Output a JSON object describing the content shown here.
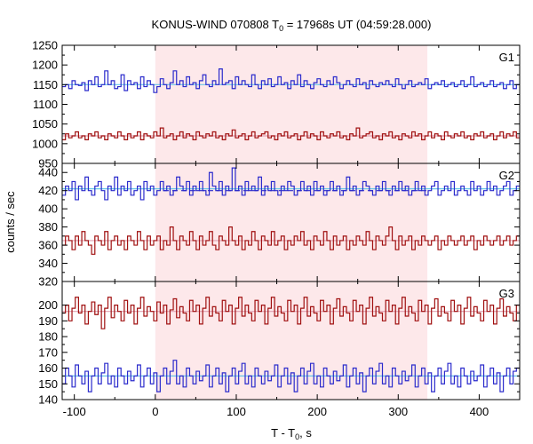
{
  "chart_data": {
    "type": "line",
    "title_prefix": "KONUS-WIND 070808 T",
    "title_sub": "0",
    "title_suffix": " = 17968s UT (04:59:28.000)",
    "xlabel_prefix": "T - T",
    "xlabel_sub": "0",
    "xlabel_suffix": ", s",
    "ylabel": "counts / sec",
    "xlim": [
      -115,
      450
    ],
    "xticks": [
      -100,
      0,
      100,
      200,
      300,
      400
    ],
    "xtick_labels": [
      "-100",
      "0",
      "100",
      "200",
      "300",
      "400"
    ],
    "shaded_interval": [
      0,
      336
    ],
    "colors": {
      "blue": "#2b2bcc",
      "red": "#a01010",
      "fit_blue": "#66c6e8",
      "fit_red": "#e0a0b0",
      "shade": "#fde8ea"
    },
    "panels": [
      {
        "label": "G1",
        "ylim": [
          950,
          1250
        ],
        "yticks": [
          950,
          1000,
          1050,
          1100,
          1150,
          1200,
          1250
        ],
        "ytick_labels": [
          "950",
          "1000",
          "1050",
          "1100",
          "1150",
          "1200",
          "1250"
        ],
        "series": [
          {
            "color": "blue",
            "fit": 1150,
            "fit_color": "fit_blue",
            "values": [
              1145,
              1150,
              1140,
              1160,
              1150,
              1148,
              1155,
              1135,
              1160,
              1150,
              1170,
              1145,
              1150,
              1185,
              1150,
              1160,
              1140,
              1145,
              1175,
              1135,
              1160,
              1150,
              1155,
              1140,
              1170,
              1145,
              1160,
              1150,
              1130,
              1145,
              1165,
              1150,
              1140,
              1155,
              1185,
              1150,
              1160,
              1145,
              1170,
              1150,
              1155,
              1140,
              1160,
              1175,
              1150,
              1145,
              1160,
              1150,
              1190,
              1150,
              1155,
              1160,
              1140,
              1170,
              1150,
              1160,
              1150,
              1145,
              1175,
              1150,
              1140,
              1160,
              1150,
              1165,
              1145,
              1150,
              1170,
              1150,
              1155,
              1140,
              1160,
              1150,
              1175,
              1145,
              1160,
              1150,
              1140,
              1155,
              1165,
              1150,
              1145,
              1160,
              1150,
              1170,
              1155,
              1140,
              1150,
              1160,
              1150,
              1145,
              1165,
              1150,
              1155,
              1140,
              1160,
              1150,
              1145,
              1155,
              1150,
              1160,
              1150,
              1145,
              1165,
              1150,
              1140,
              1150,
              1160,
              1145,
              1150,
              1155,
              1150,
              1165,
              1140,
              1150,
              1155,
              1150,
              1160,
              1145,
              1150,
              1155,
              1145,
              1150,
              1160,
              1145,
              1150,
              1170,
              1145,
              1150,
              1155,
              1145,
              1150,
              1160,
              1145,
              1150,
              1155,
              1140,
              1150,
              1160,
              1140,
              1150
            ]
          },
          {
            "color": "red",
            "fit": 1020,
            "fit_color": "fit_red",
            "values": [
              1010,
              1025,
              1015,
              1020,
              1030,
              1015,
              1020,
              1010,
              1025,
              1020,
              1030,
              1015,
              1020,
              1010,
              1025,
              1020,
              1015,
              1030,
              1020,
              1010,
              1025,
              1015,
              1020,
              1030,
              1010,
              1025,
              1020,
              1015,
              1030,
              1020,
              1040,
              1015,
              1020,
              1025,
              1010,
              1020,
              1030,
              1015,
              1025,
              1020,
              1010,
              1030,
              1020,
              1015,
              1025,
              1020,
              1030,
              1015,
              1020,
              1010,
              1025,
              1020,
              1035,
              1015,
              1020,
              1025,
              1010,
              1020,
              1030,
              1015,
              1020,
              1025,
              1030,
              1015,
              1020,
              1010,
              1025,
              1020,
              1030,
              1015,
              1020,
              1025,
              1010,
              1020,
              1030,
              1015,
              1025,
              1020,
              1010,
              1030,
              1020,
              1015,
              1025,
              1020,
              1030,
              1015,
              1020,
              1010,
              1025,
              1020,
              1040,
              1015,
              1020,
              1025,
              1030,
              1015,
              1020,
              1010,
              1025,
              1020,
              1030,
              1015,
              1020,
              1010,
              1025,
              1020,
              1015,
              1030,
              1020,
              1025,
              1010,
              1020,
              1030,
              1015,
              1025,
              1020,
              1010,
              1030,
              1020,
              1015,
              1025,
              1020,
              1030,
              1015,
              1020,
              1010,
              1025,
              1020,
              1030,
              1015,
              1020,
              1025,
              1010,
              1020,
              1030,
              1015,
              1025,
              1020,
              1030,
              1015
            ]
          }
        ]
      },
      {
        "label": "G2",
        "ylim": [
          320,
          450
        ],
        "yticks": [
          320,
          340,
          360,
          380,
          400,
          420,
          440
        ],
        "ytick_labels": [
          "320",
          "340",
          "360",
          "380",
          "400",
          "420",
          "440"
        ],
        "series": [
          {
            "color": "blue",
            "fit": 422,
            "fit_color": "fit_blue",
            "dashed_fit": {
              "value": 420,
              "from": 10,
              "to": 336
            },
            "values": [
              415,
              425,
              420,
              430,
              410,
              425,
              420,
              435,
              420,
              415,
              425,
              430,
              420,
              410,
              425,
              420,
              435,
              415,
              425,
              420,
              430,
              415,
              420,
              425,
              410,
              430,
              420,
              425,
              415,
              420,
              430,
              420,
              425,
              415,
              420,
              435,
              425,
              420,
              430,
              415,
              425,
              420,
              430,
              420,
              415,
              440,
              425,
              420,
              430,
              415,
              425,
              420,
              445,
              420,
              425,
              415,
              430,
              420,
              425,
              420,
              435,
              415,
              425,
              420,
              430,
              420,
              415,
              425,
              420,
              430,
              425,
              415,
              420,
              430,
              420,
              425,
              415,
              430,
              420,
              425,
              415,
              420,
              430,
              420,
              425,
              415,
              420,
              435,
              420,
              425,
              415,
              420,
              430,
              425,
              420,
              415,
              425,
              420,
              430,
              420,
              415,
              425,
              420,
              430,
              420,
              425,
              415,
              420,
              430,
              420,
              425,
              415,
              420,
              425,
              430,
              415,
              420,
              425,
              420,
              430,
              415,
              420,
              425,
              420,
              415,
              430,
              420,
              425,
              415,
              420,
              430,
              420,
              425,
              415,
              420,
              425,
              430,
              415,
              420,
              425
            ]
          },
          {
            "color": "red",
            "fit": 365,
            "fit_color": "fit_red",
            "values": [
              360,
              370,
              365,
              355,
              370,
              360,
              375,
              365,
              360,
              350,
              370,
              365,
              360,
              375,
              355,
              365,
              370,
              360,
              365,
              355,
              370,
              365,
              360,
              375,
              365,
              355,
              370,
              360,
              365,
              370,
              355,
              365,
              360,
              380,
              365,
              355,
              370,
              365,
              360,
              375,
              365,
              355,
              370,
              360,
              365,
              375,
              360,
              355,
              370,
              365,
              360,
              380,
              365,
              360,
              370,
              355,
              365,
              360,
              375,
              365,
              355,
              370,
              365,
              360,
              375,
              360,
              365,
              370,
              355,
              365,
              360,
              370,
              365,
              375,
              360,
              365,
              355,
              370,
              365,
              360,
              375,
              365,
              355,
              370,
              360,
              365,
              370,
              355,
              365,
              360,
              370,
              365,
              360,
              375,
              365,
              355,
              370,
              365,
              360,
              370,
              380,
              365,
              355,
              370,
              360,
              365,
              370,
              355,
              365,
              360,
              370,
              365,
              360,
              365,
              370,
              355,
              365,
              360,
              370,
              365,
              360,
              365,
              370,
              360,
              365,
              370,
              355,
              365,
              360,
              370,
              365,
              360,
              365,
              370,
              360,
              365,
              370,
              360,
              365,
              370
            ]
          }
        ]
      },
      {
        "label": "G3",
        "ylim": [
          140,
          215
        ],
        "yticks": [
          140,
          150,
          160,
          170,
          180,
          190,
          200
        ],
        "ytick_labels": [
          "140",
          "150",
          "160",
          "170",
          "180",
          "190",
          "200"
        ],
        "series": [
          {
            "color": "red",
            "fit": 196,
            "fit_color": "fit_red",
            "values": [
              195,
              200,
              190,
              198,
              205,
              195,
              200,
              188,
              196,
              202,
              194,
              200,
              185,
              198,
              205,
              192,
              200,
              196,
              190,
              203,
              195,
              200,
              188,
              198,
              205,
              193,
              199,
              196,
              190,
              202,
              195,
              200,
              188,
              197,
              204,
              192,
              199,
              195,
              190,
              203,
              196,
              200,
              188,
              198,
              205,
              193,
              199,
              195,
              190,
              203,
              196,
              200,
              188,
              198,
              205,
              193,
              200,
              195,
              190,
              203,
              196,
              200,
              188,
              198,
              205,
              193,
              199,
              195,
              190,
              203,
              196,
              200,
              188,
              198,
              205,
              193,
              199,
              195,
              190,
              203,
              196,
              200,
              188,
              198,
              204,
              193,
              199,
              195,
              190,
              203,
              196,
              200,
              188,
              198,
              205,
              193,
              199,
              195,
              190,
              203,
              196,
              200,
              188,
              198,
              205,
              193,
              199,
              195,
              190,
              203,
              196,
              200,
              188,
              198,
              204,
              193,
              199,
              195,
              190,
              203,
              196,
              200,
              188,
              198,
              205,
              193,
              199,
              195,
              190,
              203,
              196,
              200,
              188,
              198,
              204,
              193,
              199,
              195,
              190,
              200
            ]
          },
          {
            "color": "blue",
            "fit": 155,
            "fit_color": "fit_blue",
            "values": [
              150,
              160,
              155,
              148,
              162,
              155,
              150,
              158,
              145,
              155,
              160,
              150,
              157,
              163,
              150,
              155,
              148,
              160,
              155,
              150,
              158,
              152,
              155,
              162,
              148,
              155,
              160,
              150,
              157,
              145,
              155,
              160,
              150,
              158,
              165,
              150,
              155,
              148,
              160,
              155,
              150,
              158,
              152,
              155,
              162,
              148,
              155,
              160,
              150,
              157,
              145,
              155,
              160,
              150,
              158,
              163,
              150,
              155,
              148,
              160,
              155,
              150,
              158,
              152,
              155,
              162,
              148,
              155,
              160,
              150,
              157,
              145,
              155,
              160,
              150,
              158,
              163,
              150,
              155,
              148,
              160,
              155,
              150,
              158,
              152,
              155,
              162,
              148,
              155,
              160,
              150,
              157,
              145,
              155,
              160,
              150,
              158,
              163,
              150,
              155,
              148,
              160,
              155,
              150,
              158,
              152,
              155,
              162,
              148,
              155,
              160,
              150,
              157,
              145,
              155,
              160,
              150,
              158,
              163,
              150,
              155,
              148,
              160,
              155,
              150,
              158,
              152,
              155,
              162,
              148,
              155,
              160,
              150,
              157,
              145,
              155,
              160,
              150,
              158,
              160
            ]
          }
        ]
      }
    ]
  }
}
